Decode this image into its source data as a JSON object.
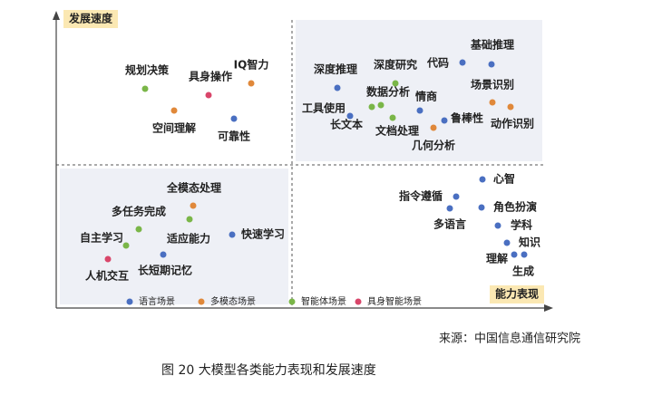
{
  "y_axis_label": "发展速度",
  "x_axis_label": "能力表现",
  "nodes": [
    {
      "label": "规划决策"
    },
    {
      "label": "具身操作"
    },
    {
      "label": "IQ智力"
    },
    {
      "label": "空间理解"
    },
    {
      "label": "可靠性"
    },
    {
      "label": "深度推理"
    },
    {
      "label": "深度研究"
    },
    {
      "label": "代码"
    },
    {
      "label": "基础推理"
    },
    {
      "label": "数据分析"
    },
    {
      "label": "情商"
    },
    {
      "label": "场景识别"
    },
    {
      "label": "工具使用"
    },
    {
      "label": "鲁棒性"
    },
    {
      "label": "长文本"
    },
    {
      "label": "动作识别"
    },
    {
      "label": "文档处理"
    },
    {
      "label": "几何分析"
    },
    {
      "label": "全模态处理"
    },
    {
      "label": "多任务完成"
    },
    {
      "label": "自主学习"
    },
    {
      "label": "适应能力"
    },
    {
      "label": "快速学习"
    },
    {
      "label": "人机交互"
    },
    {
      "label": "长短期记忆"
    },
    {
      "label": "心智"
    },
    {
      "label": "指令遵循"
    },
    {
      "label": "角色扮演"
    },
    {
      "label": "多语言"
    },
    {
      "label": "学科"
    },
    {
      "label": "知识"
    },
    {
      "label": "理解"
    },
    {
      "label": "生成"
    }
  ],
  "legend": [
    {
      "label": "语言场景"
    },
    {
      "label": "多模态场景"
    },
    {
      "label": "智能体场景"
    },
    {
      "label": "具身智能场景"
    }
  ],
  "source": "来源：中国信息通信研究院",
  "caption": "图 20  大模型各类能力表现和发展速度"
}
